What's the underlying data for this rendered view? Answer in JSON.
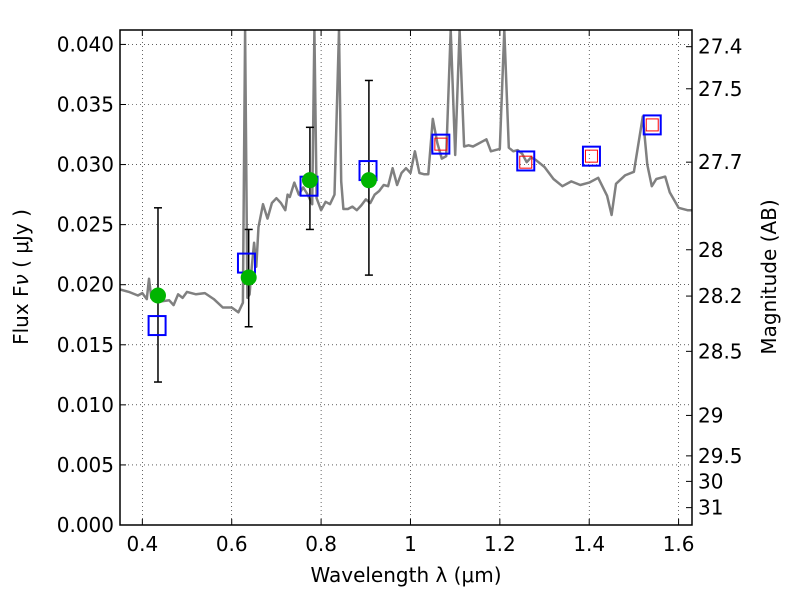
{
  "chart_data": {
    "type": "scatter",
    "xlabel": "Wavelength  λ (μm)",
    "ylabel": "Flux  F_ν  ( μJy )",
    "y2label": "Magnitude (AB)",
    "xlim": [
      0.35,
      1.63
    ],
    "ylim": [
      0.0,
      0.0412
    ],
    "grid": true,
    "x_ticks": [
      0.4,
      0.6,
      0.8,
      1.0,
      1.2,
      1.4,
      1.6
    ],
    "x_tick_labels": [
      "0.4",
      "0.6",
      "0.8",
      "1",
      "1.2",
      "1.4",
      "1.6"
    ],
    "y_ticks": [
      0.0,
      0.005,
      0.01,
      0.015,
      0.02,
      0.025,
      0.03,
      0.035,
      0.04
    ],
    "y_tick_labels": [
      "0.000",
      "0.005",
      "0.010",
      "0.015",
      "0.020",
      "0.025",
      "0.030",
      "0.035",
      "0.040"
    ],
    "y2_ticks": [
      27.4,
      27.5,
      27.7,
      28,
      28.2,
      28.5,
      29,
      29.5,
      30,
      31
    ],
    "y2_tick_labels": [
      "27.4",
      "27.5",
      "27.7",
      "28",
      "28.2",
      "28.5",
      "29",
      "29.5",
      "30",
      "31"
    ],
    "series": [
      {
        "kind": "spectrum",
        "color": "#808080",
        "x": [
          0.35,
          0.37,
          0.39,
          0.4,
          0.41,
          0.415,
          0.42,
          0.43,
          0.44,
          0.46,
          0.47,
          0.48,
          0.49,
          0.5,
          0.52,
          0.54,
          0.56,
          0.58,
          0.6,
          0.615,
          0.625,
          0.63,
          0.635,
          0.64,
          0.645,
          0.65,
          0.655,
          0.66,
          0.67,
          0.68,
          0.69,
          0.7,
          0.71,
          0.72,
          0.725,
          0.73,
          0.74,
          0.75,
          0.76,
          0.77,
          0.78,
          0.785,
          0.79,
          0.8,
          0.81,
          0.82,
          0.83,
          0.84,
          0.845,
          0.85,
          0.86,
          0.87,
          0.88,
          0.89,
          0.9,
          0.91,
          0.92,
          0.93,
          0.94,
          0.95,
          0.96,
          0.97,
          0.98,
          0.99,
          1.0,
          1.01,
          1.02,
          1.03,
          1.04,
          1.05,
          1.06,
          1.07,
          1.08,
          1.09,
          1.1,
          1.11,
          1.12,
          1.13,
          1.14,
          1.15,
          1.16,
          1.17,
          1.18,
          1.19,
          1.2,
          1.21,
          1.22,
          1.23,
          1.24,
          1.25,
          1.26,
          1.27,
          1.28,
          1.3,
          1.32,
          1.34,
          1.36,
          1.38,
          1.4,
          1.42,
          1.44,
          1.45,
          1.46,
          1.48,
          1.5,
          1.52,
          1.53,
          1.54,
          1.55,
          1.56,
          1.57,
          1.58,
          1.6,
          1.62,
          1.63
        ],
        "y": [
          0.0196,
          0.0194,
          0.0191,
          0.0193,
          0.0188,
          0.0205,
          0.0189,
          0.0189,
          0.0186,
          0.0187,
          0.0183,
          0.0192,
          0.0189,
          0.0194,
          0.0192,
          0.0193,
          0.0188,
          0.0181,
          0.0181,
          0.0177,
          0.0185,
          0.0412,
          0.0189,
          0.0192,
          0.0215,
          0.0235,
          0.0215,
          0.0248,
          0.0267,
          0.0255,
          0.0268,
          0.0272,
          0.0268,
          0.0262,
          0.0275,
          0.0273,
          0.0285,
          0.0275,
          0.0281,
          0.0275,
          0.0267,
          0.0412,
          0.0272,
          0.0262,
          0.0269,
          0.0267,
          0.0275,
          0.0412,
          0.0286,
          0.0263,
          0.0263,
          0.0265,
          0.0262,
          0.0266,
          0.0271,
          0.0268,
          0.0275,
          0.0278,
          0.0283,
          0.0282,
          0.0297,
          0.0283,
          0.0293,
          0.0297,
          0.0293,
          0.0311,
          0.0293,
          0.0292,
          0.0292,
          0.0338,
          0.0318,
          0.0305,
          0.0307,
          0.0412,
          0.0308,
          0.0412,
          0.0315,
          0.0316,
          0.0315,
          0.0317,
          0.0319,
          0.0321,
          0.0311,
          0.0312,
          0.0313,
          0.0412,
          0.0314,
          0.0311,
          0.0312,
          0.0309,
          0.0302,
          0.0306,
          0.0304,
          0.0298,
          0.0288,
          0.0282,
          0.0286,
          0.0283,
          0.0285,
          0.0289,
          0.0274,
          0.0258,
          0.0284,
          0.0291,
          0.0294,
          0.034,
          0.03,
          0.0282,
          0.0288,
          0.0289,
          0.029,
          0.0277,
          0.0264,
          0.0262,
          0.0262
        ]
      },
      {
        "kind": "open-squares",
        "color": "#0000ff",
        "x": [
          0.433,
          0.633,
          0.773,
          0.905,
          1.068,
          1.258,
          1.405,
          1.541
        ],
        "y": [
          0.0166,
          0.0218,
          0.0282,
          0.0295,
          0.0317,
          0.0303,
          0.0307,
          0.0333
        ]
      },
      {
        "kind": "open-squares-small",
        "color": "#ff0000",
        "x": [
          1.068,
          1.258,
          1.405,
          1.541
        ],
        "y": [
          0.0317,
          0.0302,
          0.0307,
          0.0333
        ]
      },
      {
        "kind": "filled-circles",
        "color": "#00b400",
        "x": [
          0.435,
          0.638,
          0.775,
          0.907
        ],
        "y": [
          0.0191,
          0.0206,
          0.0287,
          0.0287
        ],
        "err_low": [
          0.0119,
          0.0165,
          0.0246,
          0.0208
        ],
        "err_high": [
          0.0264,
          0.0246,
          0.0331,
          0.037
        ]
      }
    ]
  }
}
